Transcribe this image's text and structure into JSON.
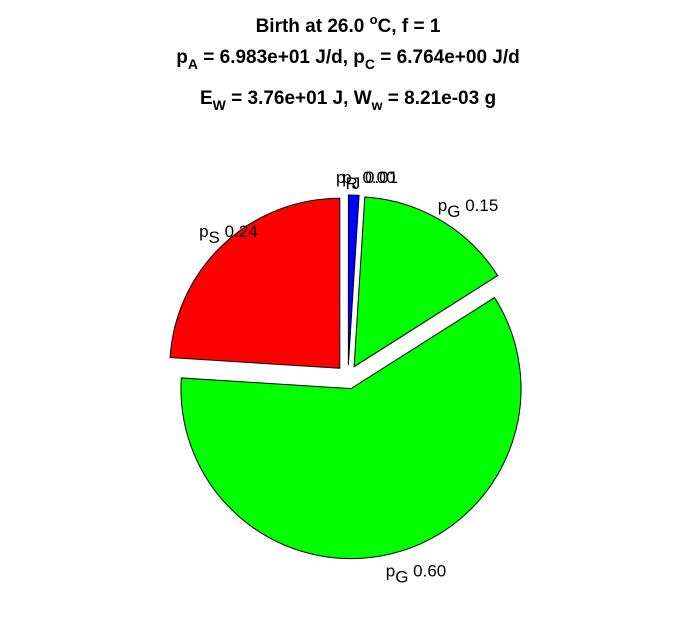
{
  "chart_data": {
    "type": "pie",
    "title": {
      "line1": {
        "pre": "Birth at 26.0 ",
        "sup": "o",
        "post": "C, f = 1"
      },
      "line2": {
        "sym1": "p",
        "sub1": "A",
        "val1": " = 6.983e+01 J/d, ",
        "sym2": "p",
        "sub2": "C",
        "val2": " = 6.764e+00 J/d"
      },
      "line3": {
        "sym1": "E",
        "sub1": "W",
        "val1": " = 3.76e+01 J, ",
        "sym2": "W",
        "sub2": "w",
        "val2": " = 8.21e-03 g"
      }
    },
    "slices": [
      {
        "name": "p_J",
        "sym": "p",
        "sub": "J",
        "value": 0.01,
        "value_label": "0.01",
        "color": "#0000ff"
      },
      {
        "name": "p_G",
        "sym": "p",
        "sub": "G",
        "value": 0.15,
        "value_label": "0.15",
        "color": "#00ff00"
      },
      {
        "name": "p_G",
        "sym": "p",
        "sub": "G",
        "value": 0.6,
        "value_label": "0.60",
        "color": "#00ff00"
      },
      {
        "name": "p_S",
        "sym": "p",
        "sub": "S",
        "value": 0.24,
        "value_label": "0.24",
        "color": "#ff0000"
      },
      {
        "name": "p_R",
        "sym": "p",
        "sub": "R",
        "value": 0.0,
        "value_label": "0.00",
        "color": "#ffff00"
      }
    ]
  }
}
